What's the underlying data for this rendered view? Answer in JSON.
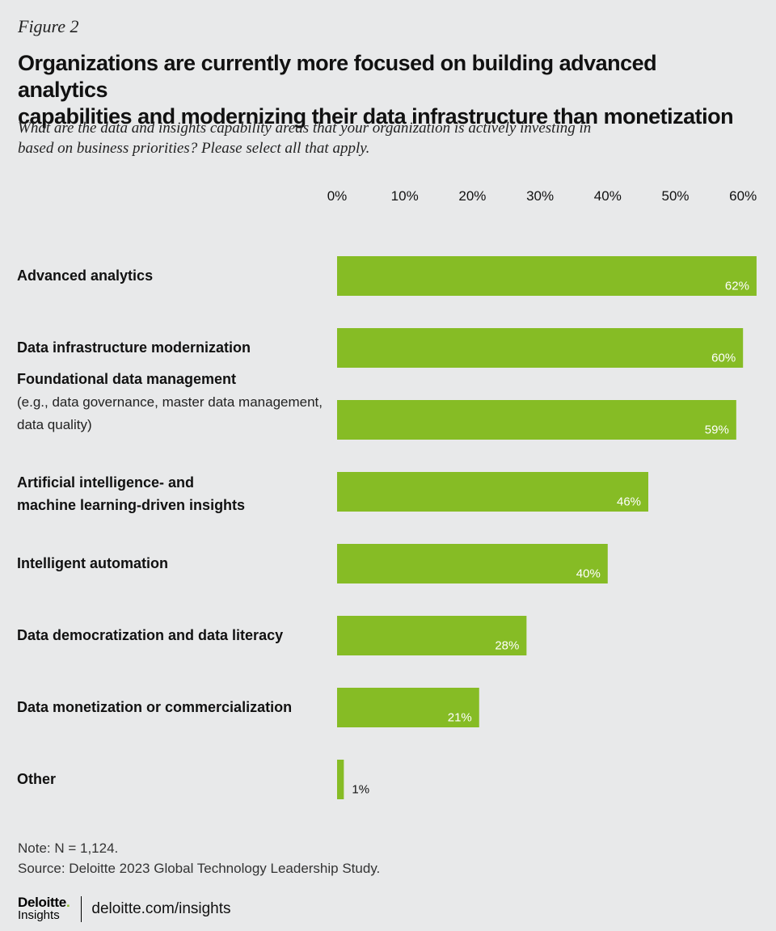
{
  "figure_label": "Figure 2",
  "title_lines": [
    "Organizations are currently more focused on building advanced analytics",
    "capabilities and modernizing their data infrastructure than monetization"
  ],
  "subtitle_lines": [
    "What are the data and insights capability areas that your organization is actively investing in",
    "based on business priorities? Please select all that apply."
  ],
  "colors": {
    "bar": "#86bc25",
    "bar_label": "#ffffff",
    "outside_label": "#111111",
    "axis_text": "#111111"
  },
  "chart_data": {
    "type": "bar",
    "orientation": "horizontal",
    "title": "Organizations are currently more focused on building advanced analytics capabilities and modernizing their data infrastructure than monetization",
    "categories": [
      {
        "name": "Advanced analytics",
        "detail": []
      },
      {
        "name": "Data infrastructure modernization",
        "detail": []
      },
      {
        "name": "Foundational data management",
        "detail": [
          "(e.g., data governance, master data management,",
          "data quality)"
        ]
      },
      {
        "name_lines": [
          "Artificial intelligence- and",
          "machine learning-driven insights"
        ],
        "detail": []
      },
      {
        "name": "Intelligent automation",
        "detail": []
      },
      {
        "name": "Data democratization and data literacy",
        "detail": []
      },
      {
        "name": "Data monetization or commercialization",
        "detail": []
      },
      {
        "name": "Other",
        "detail": []
      }
    ],
    "values": [
      62,
      60,
      59,
      46,
      40,
      28,
      21,
      1
    ],
    "value_labels": [
      "62%",
      "60%",
      "59%",
      "46%",
      "40%",
      "28%",
      "21%",
      "1%"
    ],
    "xlim": [
      0,
      62
    ],
    "xticks": [
      0,
      10,
      20,
      30,
      40,
      50,
      60
    ],
    "xtick_labels": [
      "0%",
      "10%",
      "20%",
      "30%",
      "40%",
      "50%",
      "60%"
    ],
    "axis_position": "top",
    "grid": false,
    "legend": "none"
  },
  "note": "Note: N = 1,124.",
  "source": "Source: Deloitte 2023 Global Technology Leadership Study.",
  "logo": {
    "brand": "Deloitte",
    "brand_dot": ".",
    "sub": "Insights"
  },
  "website": "deloitte.com/insights"
}
